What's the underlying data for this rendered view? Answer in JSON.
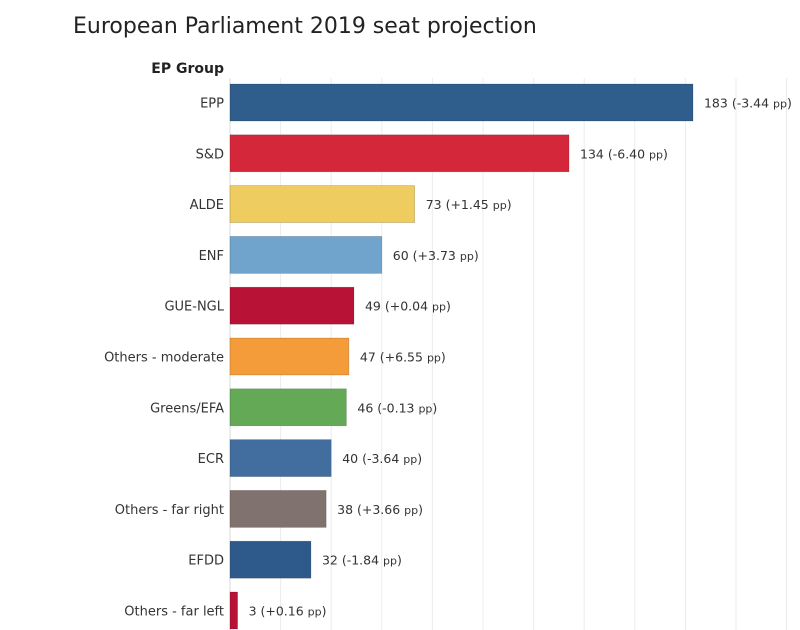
{
  "title": "European Parliament 2019 seat projection",
  "chart_data": {
    "type": "bar",
    "orientation": "horizontal",
    "title": "European Parliament 2019 seat projection",
    "ylabel": "EP Group",
    "xlabel": "",
    "xlim": [
      0,
      185
    ],
    "grid": true,
    "categories": [
      "EPP",
      "S&D",
      "ALDE",
      "ENF",
      "GUE-NGL",
      "Others - moderate",
      "Greens/EFA",
      "ECR",
      "Others - far right",
      "EFDD",
      "Others - far left"
    ],
    "values": [
      183,
      134,
      73,
      60,
      49,
      47,
      46,
      40,
      38,
      32,
      3
    ],
    "changes": [
      "-3.44",
      "-6.40",
      "+1.45",
      "+3.73",
      "+0.04",
      "+6.55",
      "-0.13",
      "-3.64",
      "+3.66",
      "-1.84",
      "+0.16"
    ],
    "change_unit": "pp",
    "colors": [
      "#2f5d8c",
      "#d4283a",
      "#eecc60",
      "#70a4cc",
      "#b81237",
      "#f49c3a",
      "#63a956",
      "#426e9f",
      "#80736f",
      "#2d5a8a",
      "#b81237"
    ]
  }
}
